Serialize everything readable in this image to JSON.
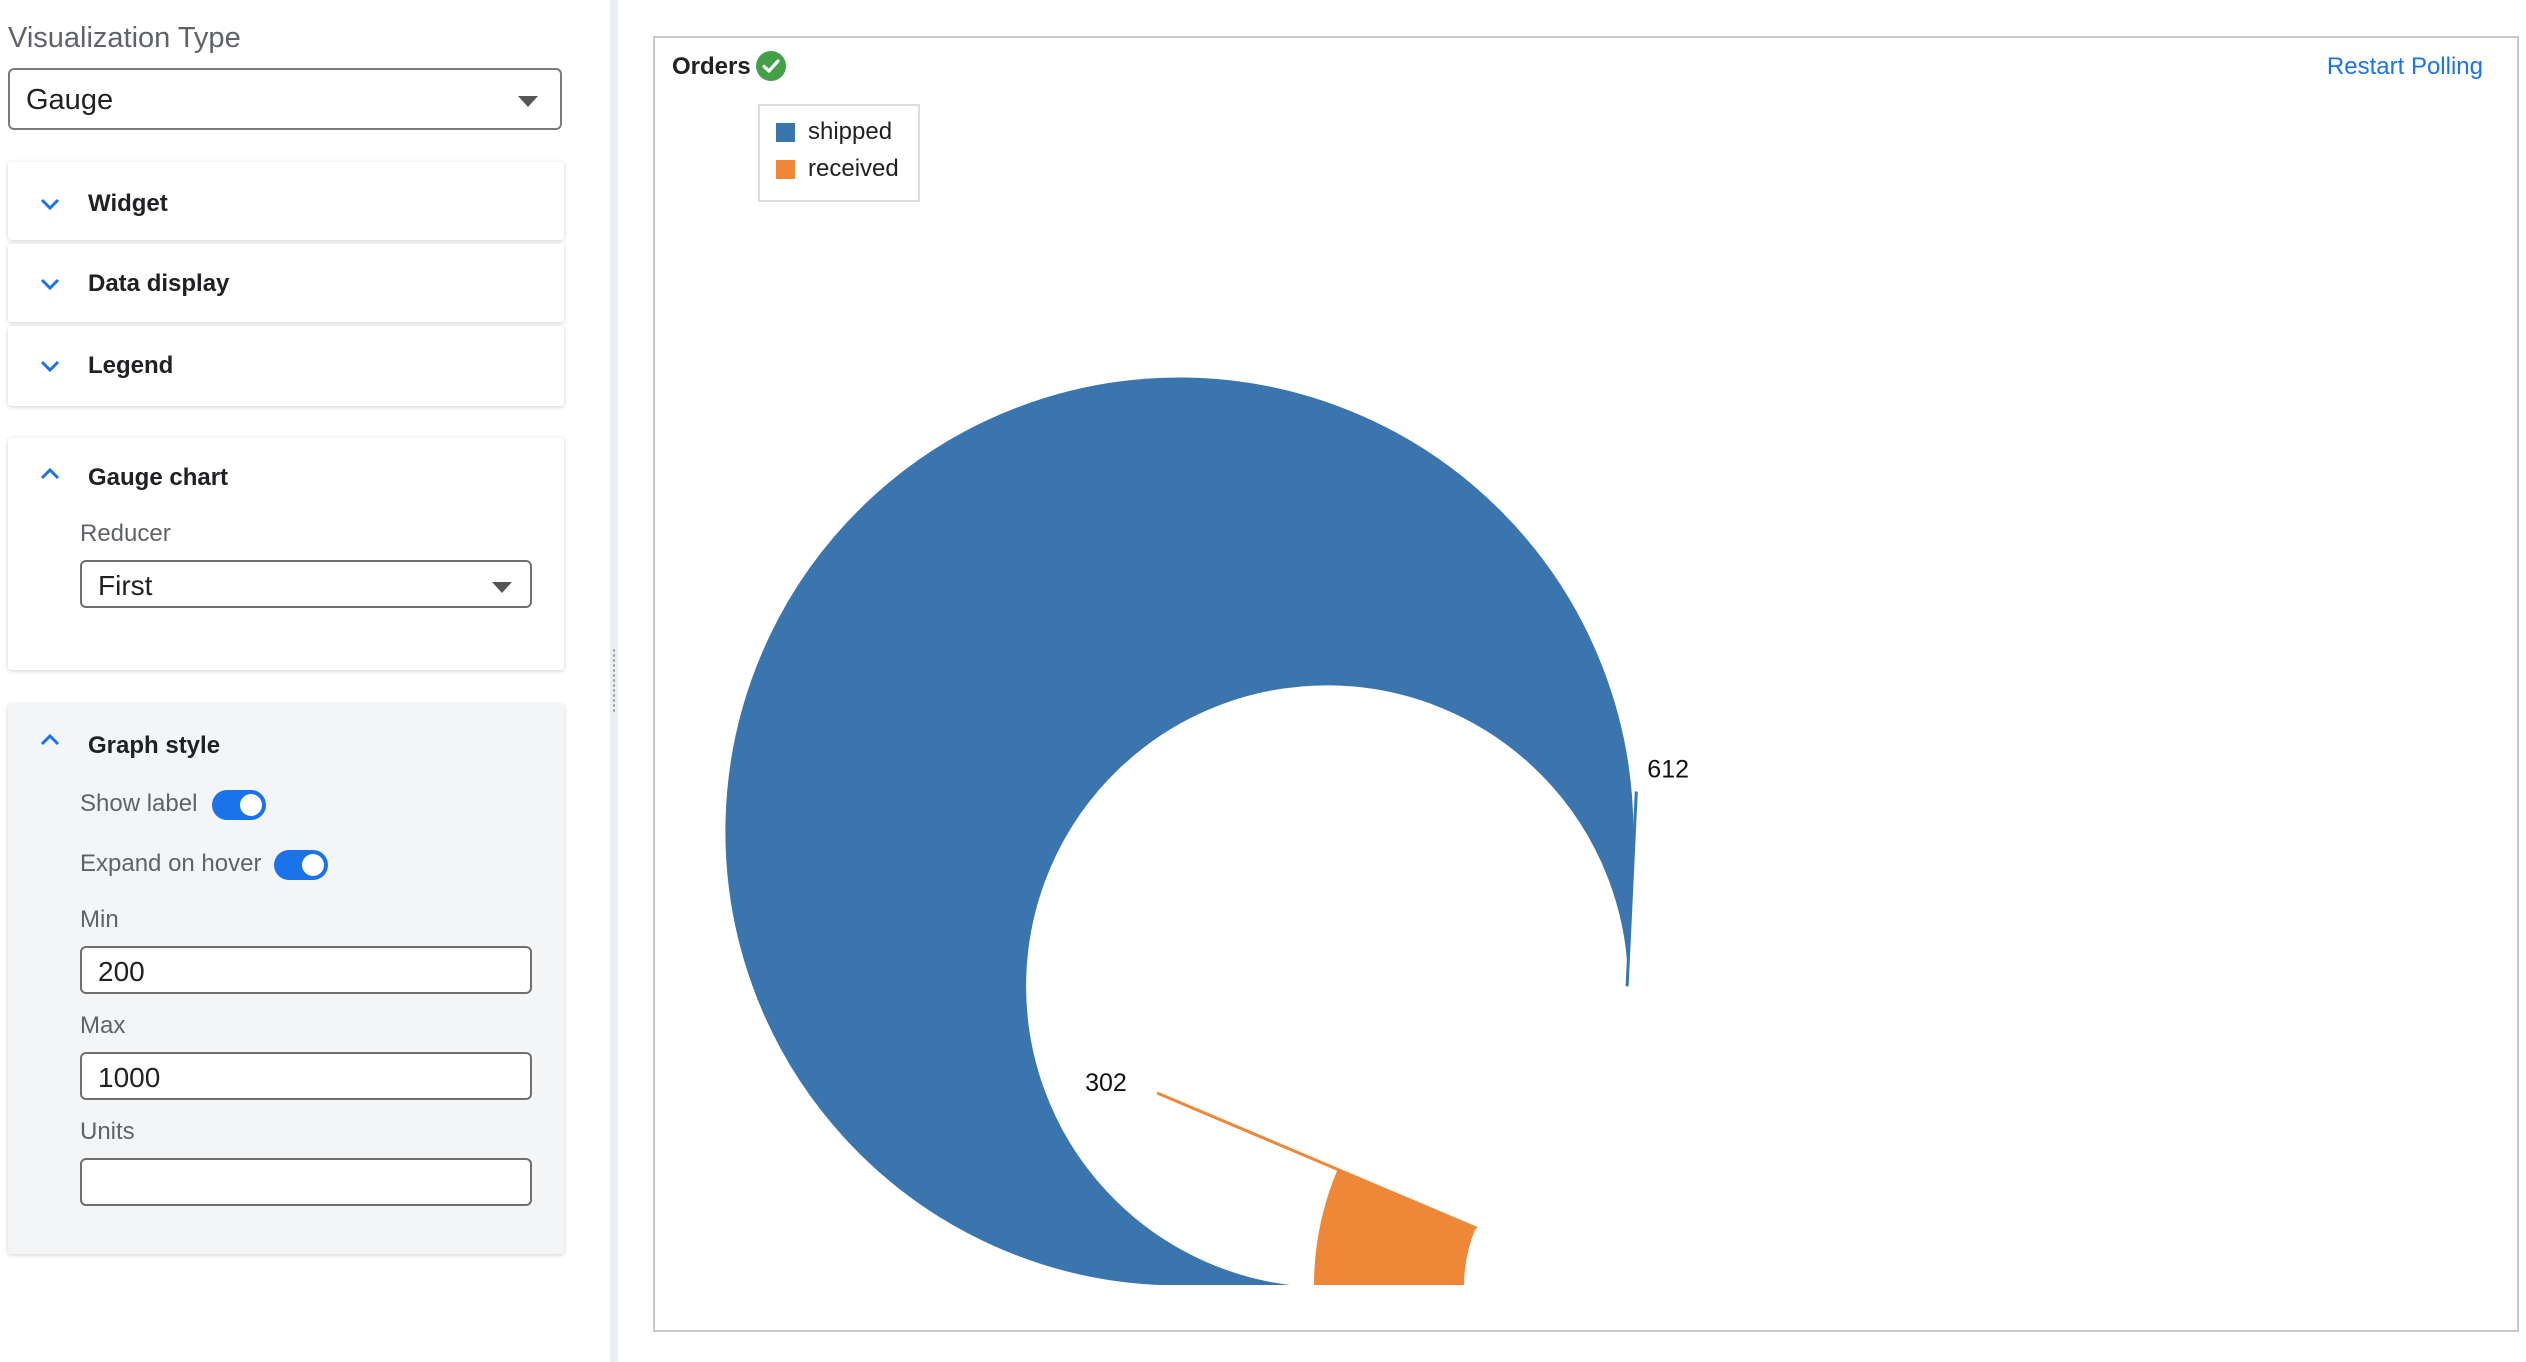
{
  "visualization": {
    "label": "Visualization Type",
    "selected": "Gauge"
  },
  "sections": {
    "widget": "Widget",
    "data_display": "Data display",
    "legend": "Legend"
  },
  "gauge_chart": {
    "title": "Gauge chart",
    "reducer_label": "Reducer",
    "reducer_value": "First"
  },
  "graph_style": {
    "title": "Graph style",
    "show_label": "Show label",
    "show_label_on": true,
    "expand_on_hover": "Expand on hover",
    "expand_on_hover_on": true,
    "min_label": "Min",
    "min_value": "200",
    "max_label": "Max",
    "max_value": "1000",
    "units_label": "Units",
    "units_value": ""
  },
  "widget": {
    "title": "Orders",
    "status_icon": "check-circle-icon",
    "restart_label": "Restart Polling"
  },
  "colors": {
    "accent": "#1a73e8",
    "status_ok": "#43a047"
  },
  "chart_data": {
    "type": "gauge",
    "min": 200,
    "max": 1000,
    "series": [
      {
        "name": "shipped",
        "value": 612,
        "label": "612",
        "color": "#3a76ad"
      },
      {
        "name": "received",
        "value": 302,
        "label": "302",
        "color": "#ee8737"
      }
    ],
    "legend_position": "top-left"
  }
}
